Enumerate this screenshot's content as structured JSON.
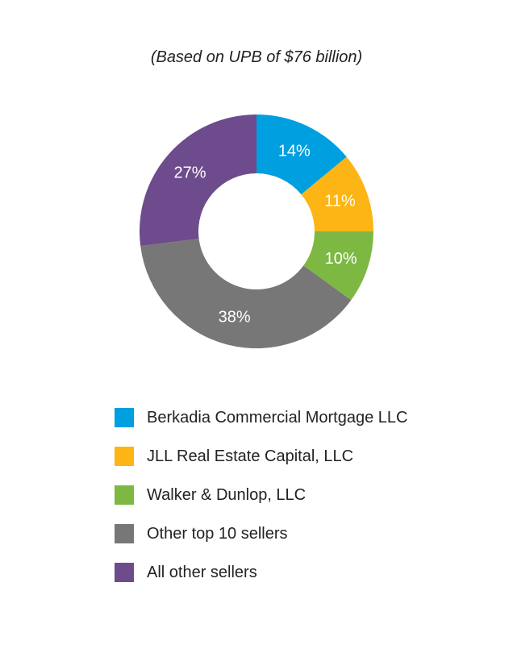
{
  "subtitle": "(Based on UPB of $76 billion)",
  "chart_data": {
    "type": "pie",
    "variant": "donut",
    "categories": [
      "Berkadia Commercial Mortgage LLC",
      "JLL Real Estate Capital, LLC",
      "Walker & Dunlop, LLC",
      "Other top 10 sellers",
      "All other sellers"
    ],
    "values": [
      14,
      11,
      10,
      38,
      27
    ],
    "data_labels": [
      "14%",
      "11%",
      "10%",
      "38%",
      "27%"
    ],
    "colors": [
      "#009fdf",
      "#fdb515",
      "#7db843",
      "#777777",
      "#6e4b8c"
    ],
    "legend_placement": "bottom",
    "title": "",
    "unit": "%"
  }
}
